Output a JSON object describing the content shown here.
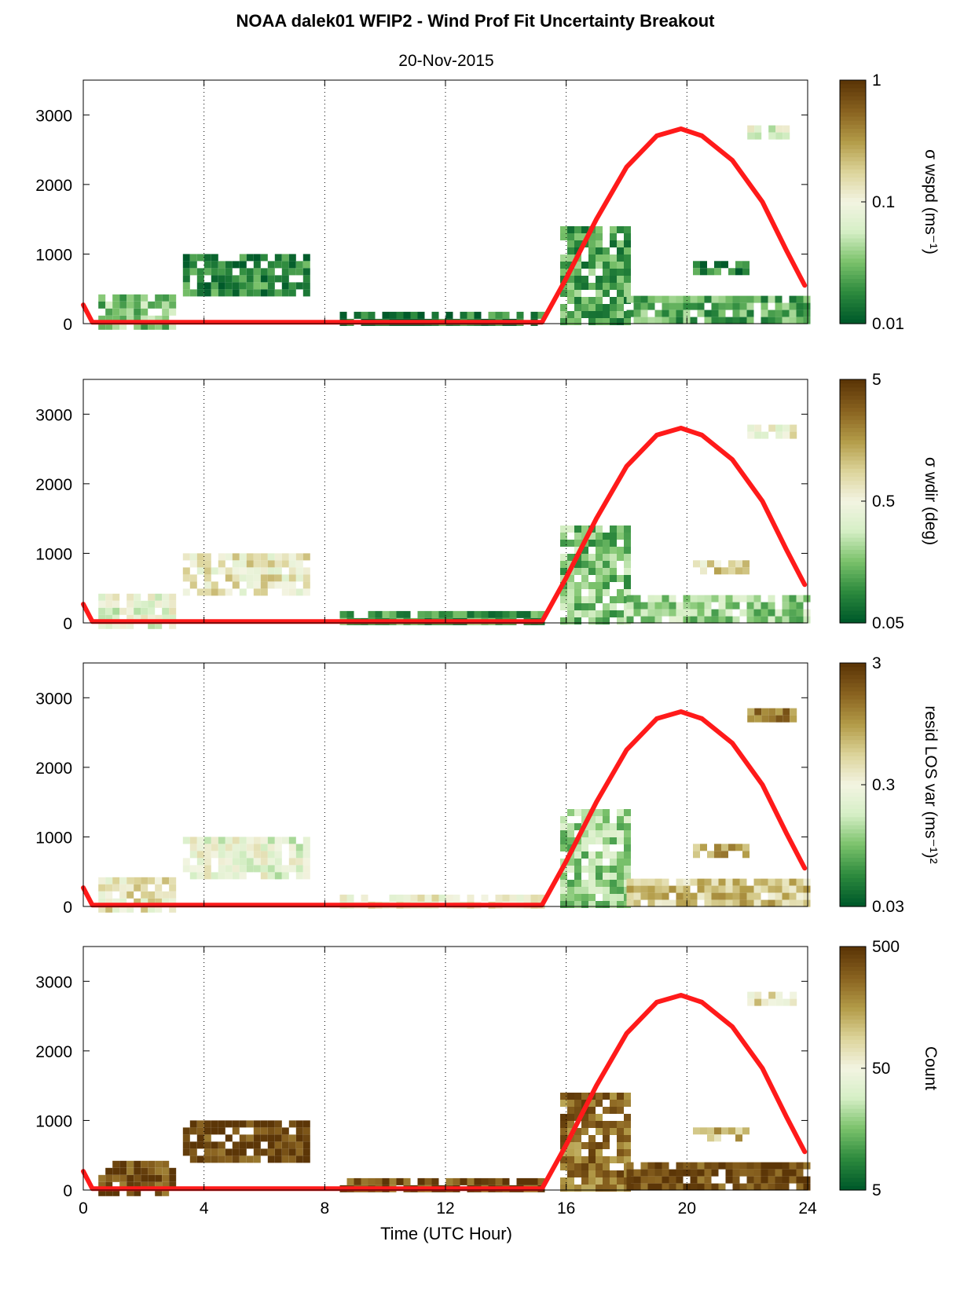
{
  "figure": {
    "title": "NOAA dalek01 WFIP2 - Wind Prof Fit Uncertainty Breakout",
    "subtitle": "20-Nov-2015",
    "xlabel": "Time (UTC Hour)"
  },
  "colors": {
    "sun_curve": "#ff1a1a",
    "colormap": [
      "#005a2a",
      "#2e8b3e",
      "#7cc36c",
      "#d6efc6",
      "#f3f4e2",
      "#dcd49a",
      "#b39c48",
      "#8a6320",
      "#5c3607"
    ]
  },
  "chart_data": [
    {
      "type": "heatmap",
      "xlim": [
        0,
        24
      ],
      "ylim": [
        0,
        3500
      ],
      "xticks": [
        0,
        4,
        8,
        12,
        16,
        20,
        24
      ],
      "yticks": [
        0,
        1000,
        2000,
        3000
      ],
      "grid": "vertical dotted",
      "colorbar": {
        "label": "σ wspd (ms⁻¹)",
        "scale": "log",
        "ticks": [
          "1",
          "0.1",
          "0.01"
        ]
      },
      "sun_curve": {
        "x": [
          0,
          0.3,
          15.2,
          16,
          17,
          18,
          19,
          19.8,
          20.5,
          21.5,
          22.5,
          23.3,
          23.9
        ],
        "y": [
          270,
          20,
          20,
          650,
          1500,
          2250,
          2700,
          2800,
          2700,
          2350,
          1750,
          1050,
          550
        ]
      },
      "regions": [
        {
          "x": [
            0.5,
            2.9
          ],
          "y": [
            0,
            420
          ],
          "level": 0.25
        },
        {
          "x": [
            3.3,
            7.5
          ],
          "y": [
            480,
            1000
          ],
          "level": 0.12
        },
        {
          "x": [
            8.5,
            15.2
          ],
          "y": [
            0,
            170
          ],
          "level": 0.08
        },
        {
          "x": [
            15.8,
            18
          ],
          "y": [
            0,
            1400
          ],
          "level": 0.18
        },
        {
          "x": [
            18,
            24
          ],
          "y": [
            0,
            400
          ],
          "level": 0.2
        },
        {
          "x": [
            20.2,
            22
          ],
          "y": [
            700,
            900
          ],
          "level": 0.1
        },
        {
          "x": [
            22,
            23.5
          ],
          "y": [
            2650,
            2850
          ],
          "level": 0.45
        }
      ]
    },
    {
      "type": "heatmap",
      "xlim": [
        0,
        24
      ],
      "ylim": [
        0,
        3500
      ],
      "xticks": [
        0,
        4,
        8,
        12,
        16,
        20,
        24
      ],
      "yticks": [
        0,
        1000,
        2000,
        3000
      ],
      "grid": "vertical dotted",
      "colorbar": {
        "label": "σ wdir (deg)",
        "scale": "log",
        "ticks": [
          "5",
          "0.5",
          "0.05"
        ]
      },
      "sun_curve": {
        "x": [
          0,
          0.3,
          15.2,
          16,
          17,
          18,
          19,
          19.8,
          20.5,
          21.5,
          22.5,
          23.3,
          23.9
        ],
        "y": [
          270,
          20,
          20,
          650,
          1500,
          2250,
          2700,
          2800,
          2700,
          2350,
          1750,
          1050,
          550
        ]
      },
      "regions": [
        {
          "x": [
            0.5,
            2.9
          ],
          "y": [
            0,
            420
          ],
          "level": 0.45
        },
        {
          "x": [
            3.3,
            7.5
          ],
          "y": [
            480,
            1000
          ],
          "level": 0.55
        },
        {
          "x": [
            8.5,
            15.2
          ],
          "y": [
            0,
            170
          ],
          "level": 0.15
        },
        {
          "x": [
            15.8,
            18
          ],
          "y": [
            0,
            1400
          ],
          "level": 0.25
        },
        {
          "x": [
            18,
            24
          ],
          "y": [
            0,
            400
          ],
          "level": 0.3
        },
        {
          "x": [
            20.2,
            22
          ],
          "y": [
            700,
            900
          ],
          "level": 0.6
        },
        {
          "x": [
            22,
            23.5
          ],
          "y": [
            2650,
            2850
          ],
          "level": 0.5
        }
      ]
    },
    {
      "type": "heatmap",
      "xlim": [
        0,
        24
      ],
      "ylim": [
        0,
        3500
      ],
      "xticks": [
        0,
        4,
        8,
        12,
        16,
        20,
        24
      ],
      "yticks": [
        0,
        1000,
        2000,
        3000
      ],
      "grid": "vertical dotted",
      "colorbar": {
        "label": "resid LOS var (ms⁻¹)²",
        "scale": "log",
        "ticks": [
          "3",
          "0.3",
          "0.03"
        ]
      },
      "sun_curve": {
        "x": [
          0,
          0.3,
          15.2,
          16,
          17,
          18,
          19,
          19.8,
          20.5,
          21.5,
          22.5,
          23.3,
          23.9
        ],
        "y": [
          270,
          20,
          20,
          650,
          1500,
          2250,
          2700,
          2800,
          2700,
          2350,
          1750,
          1050,
          550
        ]
      },
      "regions": [
        {
          "x": [
            0.5,
            2.9
          ],
          "y": [
            0,
            420
          ],
          "level": 0.55
        },
        {
          "x": [
            3.3,
            7.5
          ],
          "y": [
            480,
            1000
          ],
          "level": 0.45
        },
        {
          "x": [
            8.5,
            15.2
          ],
          "y": [
            0,
            170
          ],
          "level": 0.5
        },
        {
          "x": [
            15.8,
            18
          ],
          "y": [
            0,
            1400
          ],
          "level": 0.3
        },
        {
          "x": [
            18,
            24
          ],
          "y": [
            0,
            400
          ],
          "level": 0.65
        },
        {
          "x": [
            20.2,
            22
          ],
          "y": [
            700,
            900
          ],
          "level": 0.75
        },
        {
          "x": [
            22,
            23.5
          ],
          "y": [
            2650,
            2850
          ],
          "level": 0.8
        }
      ]
    },
    {
      "type": "heatmap",
      "xlim": [
        0,
        24
      ],
      "ylim": [
        0,
        3500
      ],
      "xticks": [
        0,
        4,
        8,
        12,
        16,
        20,
        24
      ],
      "yticks": [
        0,
        1000,
        2000,
        3000
      ],
      "grid": "vertical dotted",
      "colorbar": {
        "label": "Count",
        "scale": "log",
        "ticks": [
          "500",
          "50",
          "5"
        ]
      },
      "sun_curve": {
        "x": [
          0,
          0.3,
          15.2,
          16,
          17,
          18,
          19,
          19.8,
          20.5,
          21.5,
          22.5,
          23.3,
          23.9
        ],
        "y": [
          270,
          20,
          20,
          650,
          1500,
          2250,
          2700,
          2800,
          2700,
          2350,
          1750,
          1050,
          550
        ]
      },
      "regions": [
        {
          "x": [
            0.5,
            2.9
          ],
          "y": [
            0,
            420
          ],
          "level": 0.95
        },
        {
          "x": [
            3.3,
            7.5
          ],
          "y": [
            480,
            1000
          ],
          "level": 0.96
        },
        {
          "x": [
            8.5,
            15.2
          ],
          "y": [
            0,
            170
          ],
          "level": 0.94
        },
        {
          "x": [
            15.8,
            18
          ],
          "y": [
            0,
            1400
          ],
          "level": 0.85
        },
        {
          "x": [
            18,
            24
          ],
          "y": [
            0,
            400
          ],
          "level": 0.95
        },
        {
          "x": [
            20.2,
            22
          ],
          "y": [
            700,
            900
          ],
          "level": 0.7
        },
        {
          "x": [
            22,
            23.5
          ],
          "y": [
            2650,
            2850
          ],
          "level": 0.6
        }
      ]
    }
  ]
}
